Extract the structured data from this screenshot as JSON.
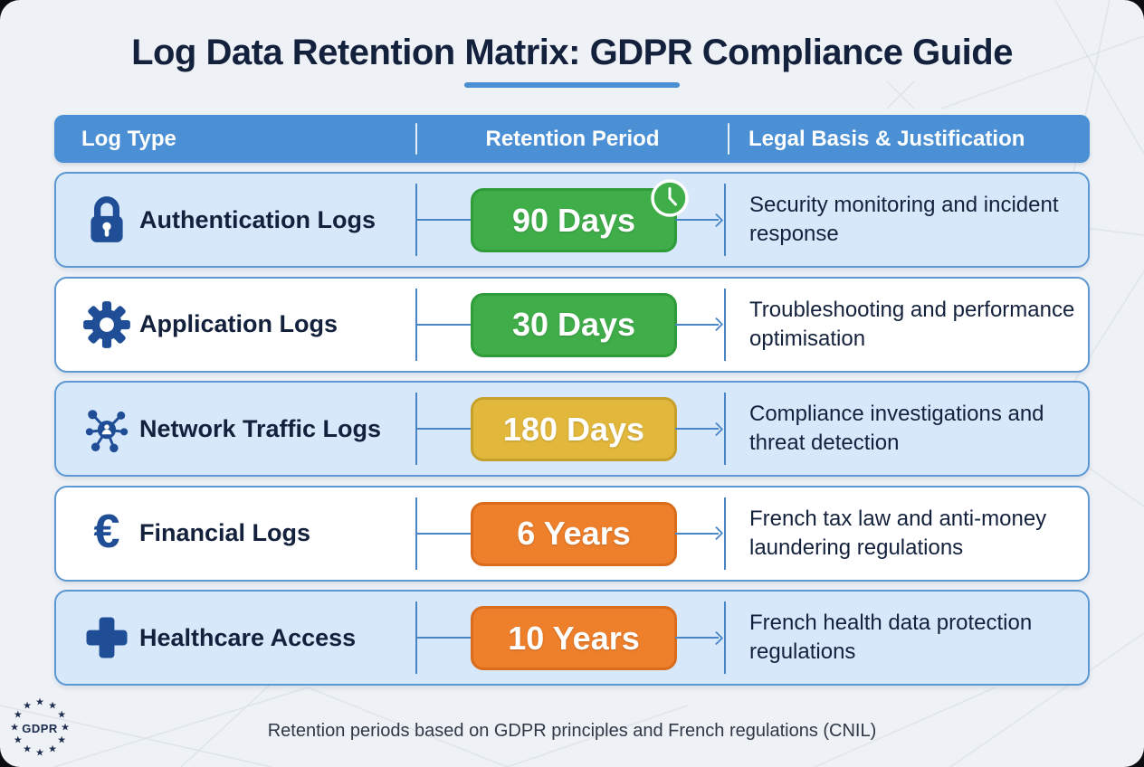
{
  "page": {
    "title": "Log Data Retention Matrix: GDPR Compliance Guide",
    "footer": "Retention periods based on GDPR principles and French regulations (CNIL)",
    "gdpr_badge_label": "GDPR",
    "star_glyph": "★"
  },
  "table": {
    "headers": [
      "Log Type",
      "Retention Period",
      "Legal Basis & Justification"
    ],
    "rows": [
      {
        "log_type": "Authentication Logs",
        "icon": "lock-icon",
        "retention": "90 Days",
        "badge_color": "green",
        "has_clock": true,
        "justification": "Security monitoring and incident response"
      },
      {
        "log_type": "Application Logs",
        "icon": "gear-icon",
        "retention": "30 Days",
        "badge_color": "green",
        "has_clock": false,
        "justification": "Troubleshooting and performance optimisation"
      },
      {
        "log_type": "Network Traffic Logs",
        "icon": "network-icon",
        "retention": "180 Days",
        "badge_color": "yellow",
        "has_clock": false,
        "justification": "Compliance investigations and threat detection"
      },
      {
        "log_type": "Financial Logs",
        "icon": "euro-icon",
        "retention": "6 Years",
        "badge_color": "orange",
        "has_clock": false,
        "justification": "French tax law and anti-money laundering regulations"
      },
      {
        "log_type": "Healthcare Access",
        "icon": "cross-icon",
        "retention": "10 Years",
        "badge_color": "orange",
        "has_clock": false,
        "justification": "French health data protection regulations"
      }
    ]
  },
  "colors": {
    "header_bg": "#4b90d4",
    "row_alt_bg": "#d7e8fb",
    "row_bg": "#ffffff",
    "badge_green": "#3fae49",
    "badge_yellow": "#e2b83c",
    "badge_orange": "#ee7f2b",
    "navy_text": "#14213c",
    "icon_blue": "#1f4e96",
    "connector_blue": "#4a86c5",
    "background": "#eef1f5"
  }
}
